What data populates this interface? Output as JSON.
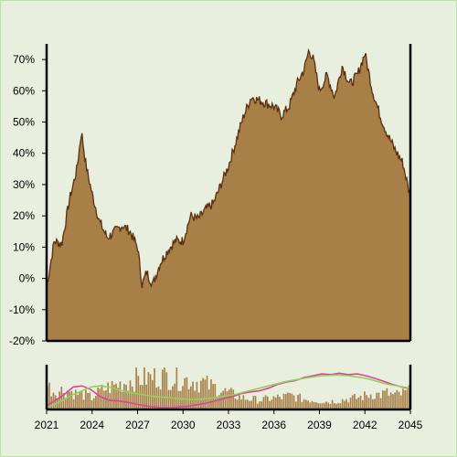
{
  "colors": {
    "background": "#e9efdf",
    "area_fill": "#a77f47",
    "area_stroke": "#5a2f10",
    "volume_bar": "#a77f47",
    "ma_fast": "#e0409a",
    "ma_slow": "#8fd35a",
    "axis": "#000000"
  },
  "chart_data": [
    {
      "type": "area",
      "x_range": [
        "2021-01",
        "2045-01"
      ],
      "ylim": [
        -20,
        75
      ],
      "y_ticks": [
        "70%",
        "60%",
        "50%",
        "40%",
        "30%",
        "20%",
        "10%",
        "0%",
        "-10%",
        "-20%"
      ],
      "y_tick_values": [
        70,
        60,
        50,
        40,
        30,
        20,
        10,
        0,
        -10,
        -20
      ],
      "series": [
        {
          "x": [
            2021.0,
            2021.5,
            2022.0,
            2022.5,
            2023.0,
            2023.3,
            2023.6,
            2024.0,
            2024.5,
            2025.0,
            2025.5,
            2026.0,
            2026.5,
            2027.0,
            2027.3,
            2027.6,
            2028.0,
            2028.5,
            2029.0,
            2029.5,
            2030.0,
            2030.5,
            2031.0,
            2031.5,
            2032.0,
            2032.5,
            2033.0,
            2033.5,
            2034.0,
            2034.5,
            2035.0,
            2035.5,
            2036.0,
            2036.5,
            2037.0,
            2037.5,
            2038.0,
            2038.3,
            2038.6,
            2039.0,
            2039.5,
            2040.0,
            2040.5,
            2041.0,
            2041.5,
            2042.0,
            2042.5,
            2043.0,
            2043.5,
            2044.0,
            2044.5,
            2045.0
          ],
          "y": [
            -3,
            12,
            11,
            25,
            35,
            47,
            36,
            27,
            18,
            13,
            15,
            17,
            15,
            10,
            -2,
            2,
            -2,
            5,
            9,
            12,
            12,
            20,
            19,
            22,
            24,
            30,
            36,
            44,
            52,
            58,
            57,
            56,
            55,
            52,
            55,
            62,
            67,
            73,
            70,
            60,
            65,
            58,
            68,
            62,
            65,
            72,
            60,
            52,
            46,
            41,
            37,
            26
          ]
        }
      ]
    },
    {
      "type": "bar",
      "x_range": [
        "2021-01",
        "2045-01"
      ],
      "x_ticks": [
        "2021",
        "2024",
        "2027",
        "2030",
        "2033",
        "2036",
        "2039",
        "2042",
        "2045"
      ],
      "x_tick_values": [
        2021,
        2024,
        2027,
        2030,
        2033,
        2036,
        2039,
        2042,
        2045
      ],
      "volume": [
        0.62,
        0.44,
        0.5,
        0.48,
        0.4,
        0.38,
        0.3,
        0.45,
        0.55,
        0.6,
        0.66,
        0.72,
        0.78,
        0.8,
        0.82,
        0.84,
        0.86,
        0.8,
        0.78,
        0.76,
        0.72,
        0.7,
        0.6,
        0.55,
        0.46,
        0.4,
        0.32,
        0.28,
        0.26,
        0.24,
        0.28,
        0.3,
        0.32,
        0.36,
        0.3,
        0.26,
        0.24,
        0.22,
        0.2,
        0.22,
        0.25,
        0.28,
        0.3,
        0.35,
        0.4,
        0.38,
        0.42,
        0.36,
        0.4,
        0.45
      ],
      "ma_fast": [
        0.05,
        0.2,
        0.35,
        0.55,
        0.58,
        0.48,
        0.3,
        0.2,
        0.18,
        0.15,
        0.1,
        0.05,
        0.02,
        0.0,
        0.0,
        0.02,
        0.04,
        0.08,
        0.12,
        0.18,
        0.25,
        0.3,
        0.38,
        0.42,
        0.45,
        0.52,
        0.62,
        0.68,
        0.72,
        0.8,
        0.85,
        0.9,
        0.88,
        0.92,
        0.88,
        0.9,
        0.85,
        0.78,
        0.7,
        0.62,
        0.55,
        0.5
      ],
      "ma_slow": [
        0.0,
        0.1,
        0.22,
        0.35,
        0.45,
        0.55,
        0.58,
        0.55,
        0.48,
        0.42,
        0.38,
        0.34,
        0.3,
        0.28,
        0.26,
        0.24,
        0.22,
        0.22,
        0.24,
        0.26,
        0.3,
        0.34,
        0.4,
        0.46,
        0.52,
        0.58,
        0.64,
        0.7,
        0.74,
        0.78,
        0.82,
        0.85,
        0.86,
        0.87,
        0.85,
        0.82,
        0.78,
        0.72,
        0.65,
        0.6,
        0.56,
        0.52
      ]
    }
  ]
}
